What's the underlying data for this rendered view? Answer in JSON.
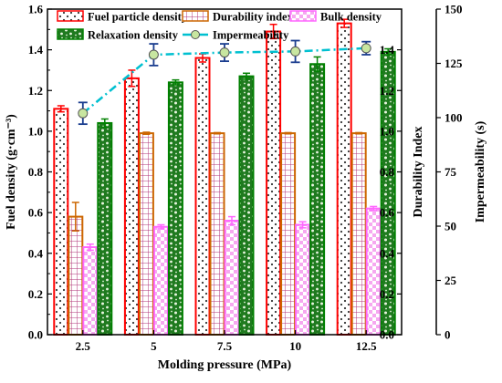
{
  "chart_data": {
    "type": "bar",
    "xlabel": "Molding pressure (MPa)",
    "categories": [
      "2.5",
      "5",
      "7.5",
      "10",
      "12.5"
    ],
    "axes": {
      "left": {
        "label": "Fuel density (g·cm⁻³)",
        "ylim": [
          0.0,
          1.6
        ],
        "ticks": [
          "0.0",
          "0.2",
          "0.4",
          "0.6",
          "0.8",
          "1.0",
          "1.2",
          "1.4",
          "1.6"
        ]
      },
      "right1": {
        "label": "Durability Index",
        "ylim": [
          0.0,
          1.6
        ],
        "ticks": [
          "0.0",
          "0.2",
          "0.4",
          "0.6",
          "0.8",
          "1.0",
          "1.2",
          "1.4"
        ]
      },
      "right2": {
        "label": "Impermeability (s)",
        "ylim": [
          0,
          150
        ],
        "ticks": [
          "0",
          "25",
          "50",
          "75",
          "100",
          "125",
          "150"
        ]
      }
    },
    "series": [
      {
        "name": "Fuel particle density",
        "axis": "left",
        "kind": "bar",
        "color": "#ff0000",
        "pattern": "dots",
        "values": [
          1.11,
          1.26,
          1.36,
          1.49,
          1.53
        ],
        "errors": [
          0.015,
          0.04,
          0.02,
          0.035,
          0.02
        ]
      },
      {
        "name": "Durability index",
        "axis": "right1",
        "kind": "bar",
        "color": "#cc6600",
        "pattern": "grid",
        "values": [
          0.58,
          0.99,
          0.99,
          0.99,
          0.99
        ],
        "errors": [
          0.07,
          0.005,
          0.003,
          0.003,
          0.003
        ]
      },
      {
        "name": "Bulk density",
        "axis": "left",
        "kind": "bar",
        "color": "#ff66ff",
        "pattern": "check",
        "values": [
          0.43,
          0.53,
          0.56,
          0.54,
          0.62
        ],
        "errors": [
          0.015,
          0.01,
          0.02,
          0.015,
          0.01
        ]
      },
      {
        "name": "Relaxation density",
        "axis": "left",
        "kind": "bar",
        "color": "#008000",
        "pattern": "camo",
        "values": [
          1.04,
          1.24,
          1.27,
          1.33,
          1.39
        ],
        "errors": [
          0.02,
          0.012,
          0.015,
          0.035,
          0.015
        ]
      },
      {
        "name": "Impermeability",
        "axis": "right2",
        "kind": "line",
        "color": "#00c0d0",
        "marker_color": "#c8e6a0",
        "values": [
          102,
          129,
          130,
          130.5,
          132
        ],
        "errors": [
          5,
          5,
          4,
          5,
          3
        ]
      }
    ],
    "legend_placement": "top"
  }
}
